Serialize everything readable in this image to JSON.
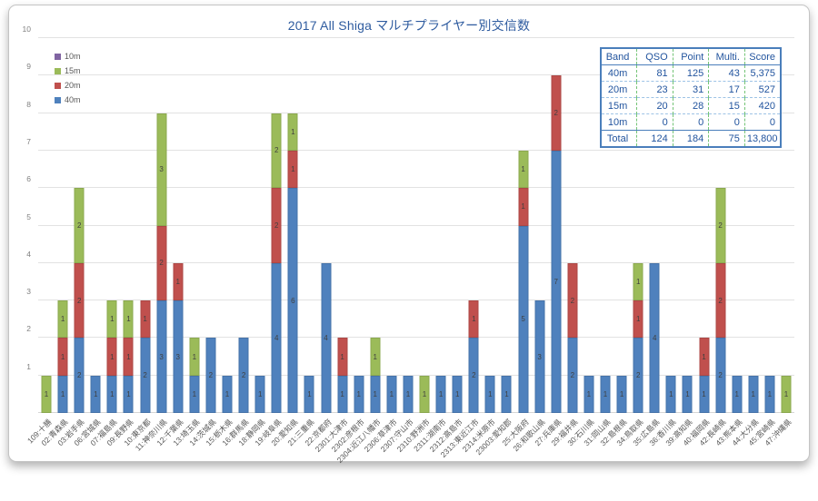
{
  "card": {
    "title": "2017 All Shiga マルチプライヤー別交信数"
  },
  "legend": {
    "items": [
      {
        "label": "10m",
        "color": "#8064A2"
      },
      {
        "label": "15m",
        "color": "#9BBB59"
      },
      {
        "label": "20m",
        "color": "#C0504D"
      },
      {
        "label": "40m",
        "color": "#4F81BD"
      }
    ]
  },
  "table": {
    "headers": [
      "Band",
      "QSO",
      "Point",
      "Multi.",
      "Score"
    ],
    "rows": [
      [
        "40m",
        "81",
        "125",
        "43",
        "5,375"
      ],
      [
        "20m",
        "23",
        "31",
        "17",
        "527"
      ],
      [
        "15m",
        "20",
        "28",
        "15",
        "420"
      ],
      [
        "10m",
        "0",
        "0",
        "0",
        "0"
      ],
      [
        "Total",
        "124",
        "184",
        "75",
        "13,800"
      ]
    ]
  },
  "chart_data": {
    "type": "bar",
    "stacked": true,
    "title": "2017 All Shiga マルチプライヤー別交信数",
    "xlabel": "",
    "ylabel": "",
    "ylim": [
      0,
      10
    ],
    "yticks": [
      1,
      2,
      3,
      4,
      5,
      6,
      7,
      8,
      9,
      10
    ],
    "grid": true,
    "data_labels": true,
    "legend_position": "top-left",
    "categories": [
      "109:十勝",
      "02:青森県",
      "03:岩手県",
      "06:宮城県",
      "07:福島県",
      "09:長野県",
      "10:東京都",
      "11:神奈川県",
      "12:千葉県",
      "13:埼玉県",
      "14:茨城県",
      "15:栃木県",
      "16:群馬県",
      "18:静岡県",
      "19:岐阜県",
      "20:愛知県",
      "21:三重県",
      "22:京都府",
      "2301:大津市",
      "2302:彦根市",
      "2304:近江八幡市",
      "2306:草津市",
      "2307:守山市",
      "2310:野洲市",
      "2311:湖南市",
      "2312:高島市",
      "2313:東近江市",
      "2314:米原市",
      "23003:愛知郡",
      "25:大阪府",
      "26:和歌山県",
      "27:兵庫県",
      "29:福井県",
      "30:石川県",
      "31:岡山県",
      "32:島根県",
      "34:鳥取県",
      "35:広島県",
      "36:香川県",
      "39:高知県",
      "40:福岡県",
      "42:長崎県",
      "43:熊本県",
      "44:大分県",
      "45:宮崎県",
      "47:沖縄県"
    ],
    "series": [
      {
        "name": "40m",
        "color": "#4F81BD",
        "values": [
          0,
          1,
          2,
          1,
          1,
          1,
          2,
          3,
          3,
          1,
          2,
          1,
          2,
          1,
          4,
          6,
          1,
          4,
          1,
          1,
          1,
          1,
          1,
          0,
          1,
          1,
          2,
          1,
          1,
          5,
          3,
          7,
          2,
          1,
          1,
          1,
          2,
          4,
          1,
          1,
          1,
          2,
          1,
          1,
          1,
          0
        ]
      },
      {
        "name": "20m",
        "color": "#C0504D",
        "values": [
          0,
          1,
          2,
          0,
          1,
          1,
          1,
          2,
          1,
          0,
          0,
          0,
          0,
          0,
          2,
          1,
          0,
          0,
          1,
          0,
          0,
          0,
          0,
          0,
          0,
          0,
          1,
          0,
          0,
          1,
          0,
          2,
          2,
          0,
          0,
          0,
          1,
          0,
          0,
          0,
          1,
          2,
          0,
          0,
          0,
          0
        ]
      },
      {
        "name": "15m",
        "color": "#9BBB59",
        "values": [
          1,
          1,
          2,
          0,
          1,
          1,
          0,
          3,
          0,
          1,
          0,
          0,
          0,
          0,
          2,
          1,
          0,
          0,
          0,
          0,
          1,
          0,
          0,
          1,
          0,
          0,
          0,
          0,
          0,
          1,
          0,
          0,
          0,
          0,
          0,
          0,
          1,
          0,
          0,
          0,
          0,
          2,
          0,
          0,
          0,
          1
        ]
      },
      {
        "name": "10m",
        "color": "#8064A2",
        "values": [
          0,
          0,
          0,
          0,
          0,
          0,
          0,
          0,
          0,
          0,
          0,
          0,
          0,
          0,
          0,
          0,
          0,
          0,
          0,
          0,
          0,
          0,
          0,
          0,
          0,
          0,
          0,
          0,
          0,
          0,
          0,
          0,
          0,
          0,
          0,
          0,
          0,
          0,
          0,
          0,
          0,
          0,
          0,
          0,
          0,
          0
        ]
      }
    ]
  }
}
